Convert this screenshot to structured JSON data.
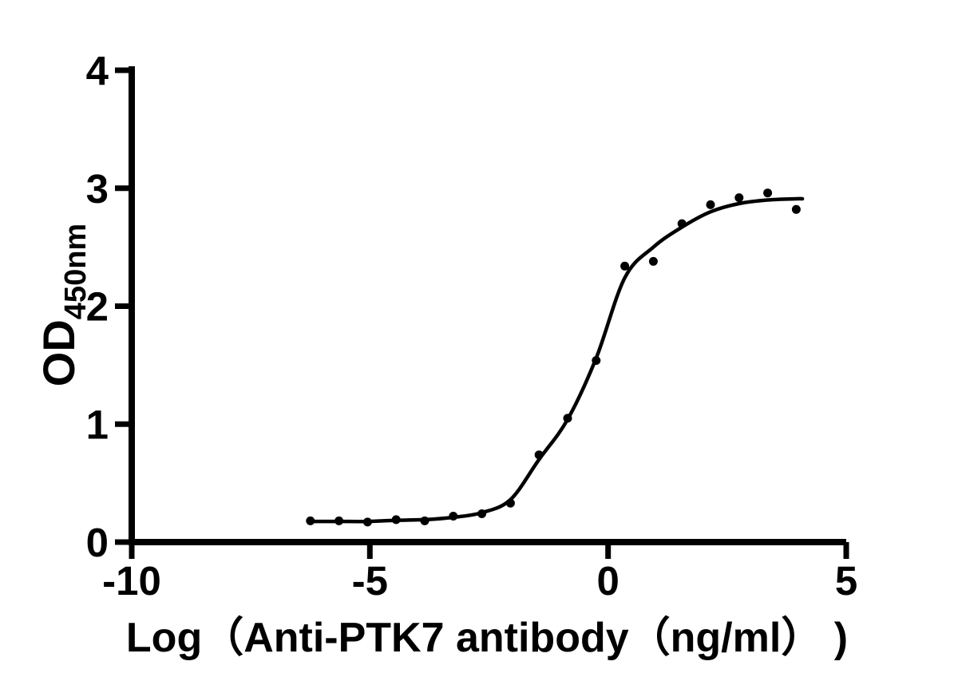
{
  "figure": {
    "background_color": "#ffffff",
    "ink_color": "#000000"
  },
  "chart_data": {
    "type": "scatter",
    "title": "",
    "xlabel": "Log（Anti-PTK7 antibody（ng/ml） )",
    "ylabel": "OD450nm",
    "ylabel_main": "OD",
    "ylabel_sub": "450nm",
    "xlim": [
      -10,
      5
    ],
    "ylim": [
      0,
      4
    ],
    "x_ticks": [
      -10,
      -5,
      0,
      5
    ],
    "x_tick_labels": [
      "-10",
      "-5",
      "0",
      "5"
    ],
    "y_ticks": [
      0,
      1,
      2,
      3,
      4
    ],
    "y_tick_labels": [
      "0",
      "1",
      "2",
      "3",
      "4"
    ],
    "grid": false,
    "legend": "none",
    "marker": "filled-circle",
    "marker_color": "#000000",
    "curve_color": "#000000",
    "axis_color": "#000000",
    "series": [
      {
        "points": [
          [
            -6.25,
            0.18
          ],
          [
            -5.65,
            0.18
          ],
          [
            -5.05,
            0.17
          ],
          [
            -4.45,
            0.19
          ],
          [
            -3.85,
            0.18
          ],
          [
            -3.25,
            0.22
          ],
          [
            -2.65,
            0.24
          ],
          [
            -2.05,
            0.33
          ],
          [
            -1.45,
            0.74
          ],
          [
            -0.85,
            1.05
          ],
          [
            -0.25,
            1.54
          ],
          [
            0.35,
            2.34
          ],
          [
            0.95,
            2.38
          ],
          [
            1.55,
            2.7
          ],
          [
            2.15,
            2.86
          ],
          [
            2.75,
            2.92
          ],
          [
            3.35,
            2.96
          ],
          [
            3.95,
            2.82
          ]
        ]
      }
    ],
    "fit_curve_samples": [
      [
        -6.25,
        0.175
      ],
      [
        -5.65,
        0.175
      ],
      [
        -5.05,
        0.175
      ],
      [
        -4.45,
        0.185
      ],
      [
        -3.85,
        0.19
      ],
      [
        -3.25,
        0.21
      ],
      [
        -2.65,
        0.25
      ],
      [
        -2.05,
        0.36
      ],
      [
        -1.45,
        0.7
      ],
      [
        -0.85,
        1.04
      ],
      [
        -0.25,
        1.56
      ],
      [
        0.35,
        2.24
      ],
      [
        0.95,
        2.5
      ],
      [
        1.55,
        2.67
      ],
      [
        2.15,
        2.8
      ],
      [
        2.75,
        2.87
      ],
      [
        3.35,
        2.9
      ],
      [
        3.95,
        2.91
      ],
      [
        4.08,
        2.91
      ]
    ]
  }
}
